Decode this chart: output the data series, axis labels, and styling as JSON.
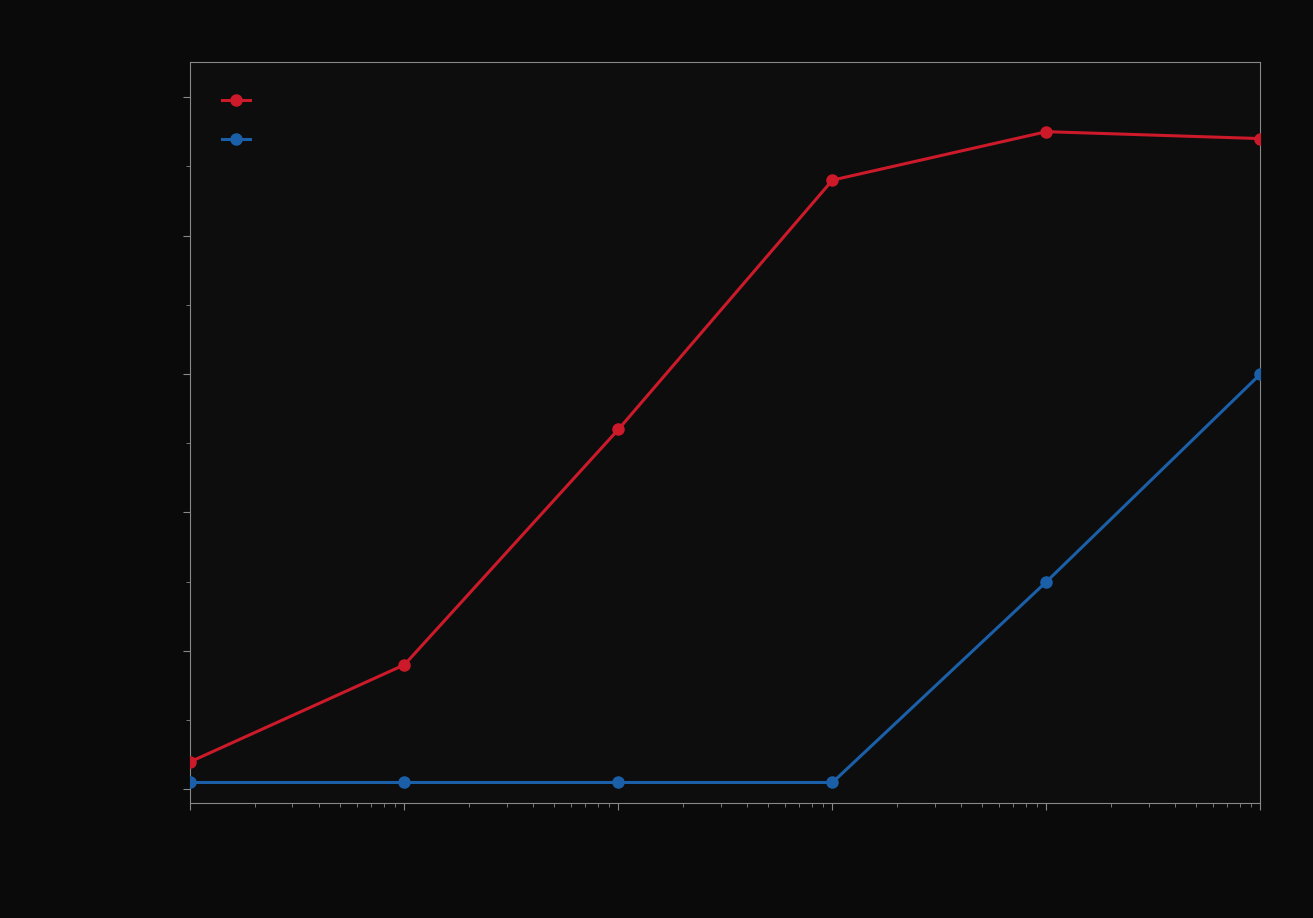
{
  "background_color": "#0a0a0a",
  "plot_bg_color": "#0d0d0d",
  "red_line_color": "#cc1a2a",
  "blue_line_color": "#1a5fa8",
  "red_x": [
    0.001,
    0.01,
    0.1,
    1,
    10,
    100
  ],
  "red_y": [
    0.04,
    0.18,
    0.52,
    0.88,
    0.95,
    0.94
  ],
  "blue_x": [
    0.001,
    0.01,
    0.1,
    1,
    10,
    100
  ],
  "blue_y": [
    0.01,
    0.01,
    0.01,
    0.01,
    0.3,
    0.6
  ],
  "xlim_log": [
    -3,
    2
  ],
  "ylim": [
    -0.02,
    1.05
  ],
  "spine_color": "#888888",
  "tick_color": "#888888",
  "marker_size": 8,
  "line_width": 2.2
}
